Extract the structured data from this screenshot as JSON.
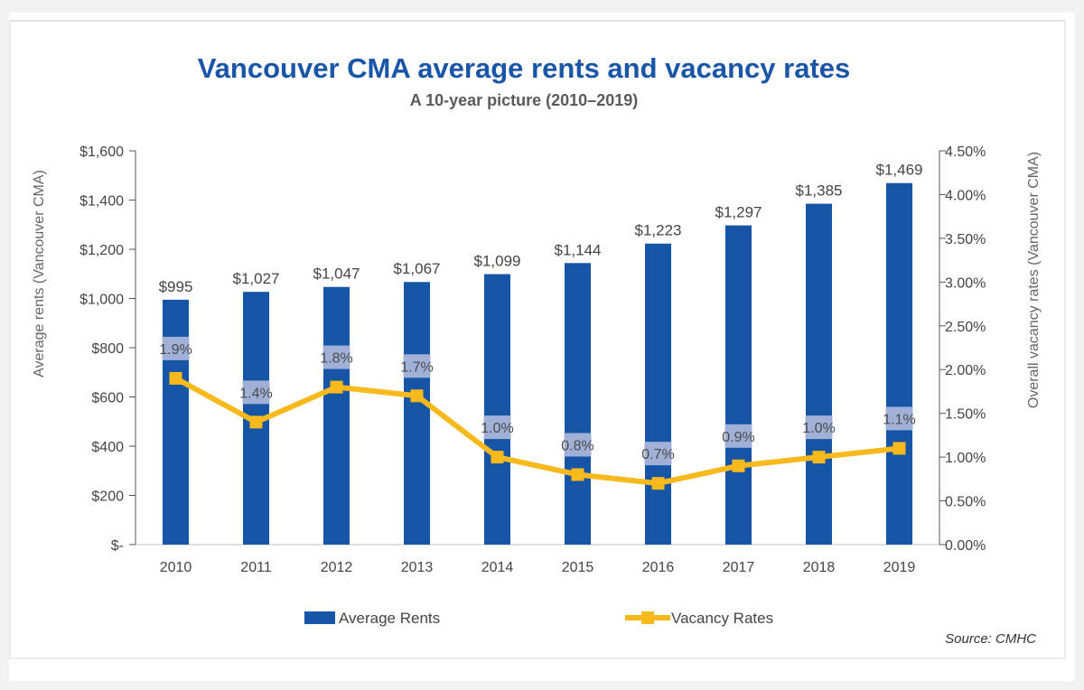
{
  "colors": {
    "rent_bar": "#1655a6",
    "vacancy_line": "#f7b91c",
    "label_bg": "#a9b5d9",
    "title": "#1a56a8",
    "axis": "#555555"
  },
  "source": "Source: CMHC",
  "chart_data": {
    "type": "bar",
    "title": "Vancouver CMA average rents and vacancy rates",
    "subtitle": "A 10-year picture (2010–2019)",
    "categories": [
      "2010",
      "2011",
      "2012",
      "2013",
      "2014",
      "2015",
      "2016",
      "2017",
      "2018",
      "2019"
    ],
    "ylabel": "Average rents (Vancouver CMA)",
    "y2label": "Overall vacancy rates (Vancouver CMA)",
    "ylim": [
      0,
      1600
    ],
    "y2lim": [
      0,
      4.5
    ],
    "y_ticks": [
      "$-",
      "$200",
      "$400",
      "$600",
      "$800",
      "$1,000",
      "$1,200",
      "$1,400",
      "$1,600"
    ],
    "y2_ticks": [
      "0.00%",
      "0.50%",
      "1.00%",
      "1.50%",
      "2.00%",
      "2.50%",
      "3.00%",
      "3.50%",
      "4.00%",
      "4.50%"
    ],
    "legend_position": "bottom",
    "grid": false,
    "series": [
      {
        "name": "Average Rents",
        "type": "bar",
        "axis": "left",
        "values": [
          995,
          1027,
          1047,
          1067,
          1099,
          1144,
          1223,
          1297,
          1385,
          1469
        ],
        "labels": [
          "$995",
          "$1,027",
          "$1,047",
          "$1,067",
          "$1,099",
          "$1,144",
          "$1,223",
          "$1,297",
          "$1,385",
          "$1,469"
        ]
      },
      {
        "name": "Vacancy Rates",
        "type": "line",
        "axis": "right",
        "values": [
          1.9,
          1.4,
          1.8,
          1.7,
          1.0,
          0.8,
          0.7,
          0.9,
          1.0,
          1.1
        ],
        "labels": [
          "1.9%",
          "1.4%",
          "1.8%",
          "1.7%",
          "1.0%",
          "0.8%",
          "0.7%",
          "0.9%",
          "1.0%",
          "1.1%"
        ]
      }
    ]
  }
}
